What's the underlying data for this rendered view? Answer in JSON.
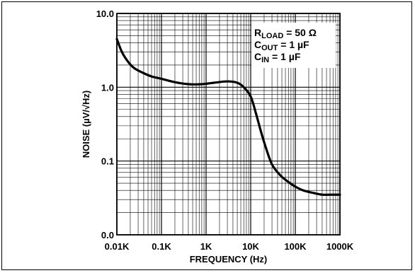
{
  "chart_data": {
    "type": "line",
    "xlabel": "FREQUENCY (Hz)",
    "ylabel": "NOISE (µV/√Hz)",
    "x_scale": "log",
    "y_scale": "log",
    "xlim": [
      10,
      1000000
    ],
    "ylim": [
      0.01,
      10
    ],
    "x_ticks": [
      10,
      100,
      1000,
      10000,
      100000,
      1000000
    ],
    "x_tick_labels": [
      "0.01K",
      "0.1K",
      "1K",
      "10K",
      "100K",
      "1000K"
    ],
    "y_ticks": [
      0.01,
      0.1,
      1,
      10
    ],
    "y_tick_labels": [
      "0.0",
      "0.1",
      "1.0",
      "10.0"
    ],
    "grid": true,
    "annotation": {
      "lines": [
        {
          "main": "R",
          "sub": "LOAD",
          "rest": " = 50 Ω"
        },
        {
          "main": "C",
          "sub": "OUT",
          "rest": " = 1 µF"
        },
        {
          "main": "C",
          "sub": "IN",
          "rest": " = 1 µF"
        }
      ],
      "placement": "top-right"
    },
    "series": [
      {
        "x": [
          10,
          13,
          18,
          25,
          40,
          60,
          100,
          200,
          400,
          800,
          1500,
          3000,
          5000,
          7000,
          10000,
          13000,
          17000,
          22000,
          30000,
          45000,
          70000,
          100000,
          150000,
          250000,
          400000,
          600000,
          1000000
        ],
        "y": [
          4.5,
          3.0,
          2.2,
          1.8,
          1.55,
          1.4,
          1.3,
          1.17,
          1.1,
          1.1,
          1.15,
          1.2,
          1.15,
          1.0,
          0.75,
          0.45,
          0.25,
          0.15,
          0.09,
          0.065,
          0.052,
          0.045,
          0.04,
          0.037,
          0.035,
          0.035,
          0.035
        ]
      }
    ]
  }
}
